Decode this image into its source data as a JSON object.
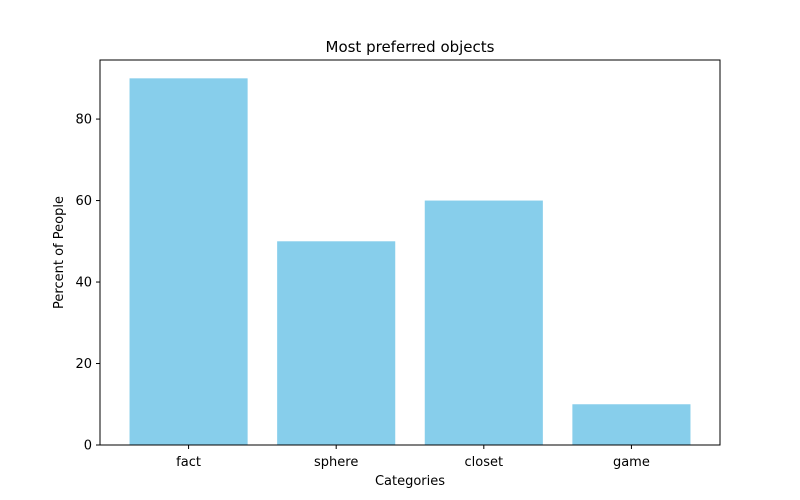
{
  "chart_data": {
    "type": "bar",
    "title": "Most preferred objects",
    "xlabel": "Categories",
    "ylabel": "Percent of People",
    "categories": [
      "fact",
      "sphere",
      "closet",
      "game"
    ],
    "values": [
      90,
      50,
      60,
      10
    ],
    "ylim": [
      0,
      94.5
    ],
    "yticks": [
      0,
      20,
      40,
      60,
      80
    ],
    "bar_color": "#87CEEB",
    "grid": false,
    "legend": "none"
  }
}
